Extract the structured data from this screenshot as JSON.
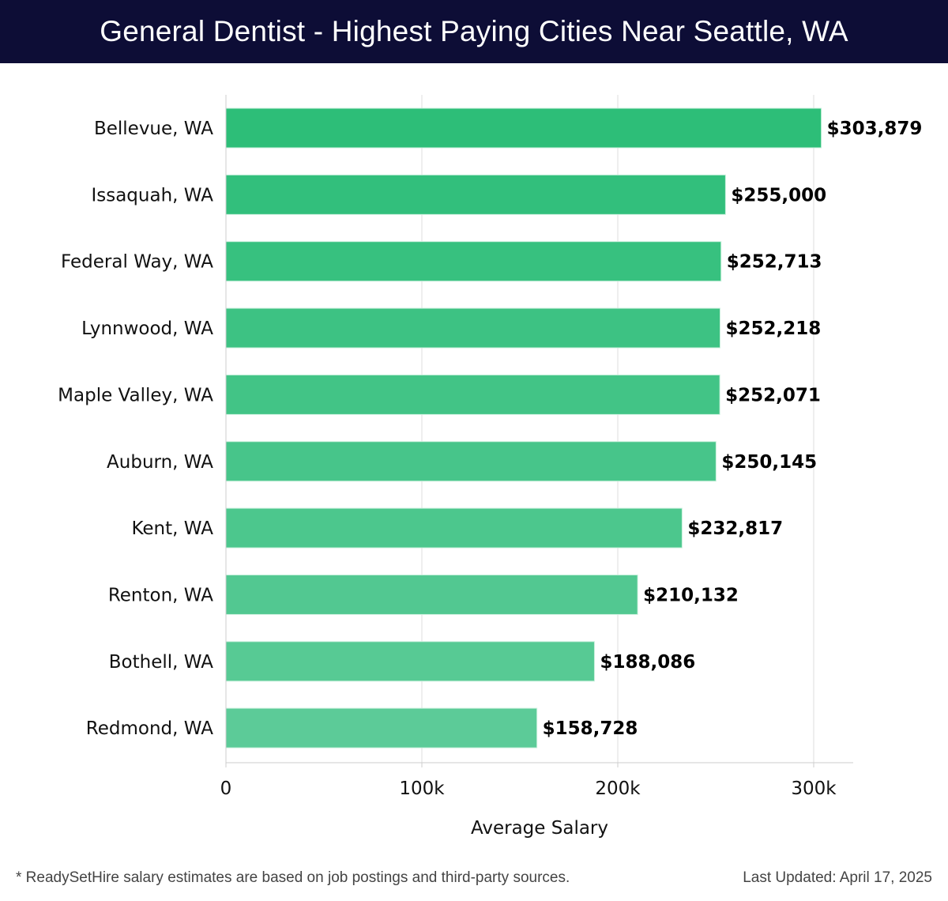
{
  "header": {
    "title": "General Dentist - Highest Paying Cities Near Seattle, WA"
  },
  "footer": {
    "note": "* ReadySetHire salary estimates are based on job postings and third-party sources.",
    "last_updated": "Last Updated: April 17, 2025"
  },
  "colors": {
    "header_bg": "#0d0d36",
    "bar_top": "#2dbe78",
    "bar_bottom": "#5ccb98",
    "grid": "#dddddd"
  },
  "chart_data": {
    "type": "bar",
    "orientation": "horizontal",
    "title": "General Dentist - Highest Paying Cities Near Seattle, WA",
    "xlabel": "Average Salary",
    "ylabel": "",
    "xlim": [
      0,
      320000
    ],
    "xticks": [
      0,
      100000,
      200000,
      300000
    ],
    "xtick_labels": [
      "0",
      "100k",
      "200k",
      "300k"
    ],
    "grid": "vertical",
    "categories": [
      "Bellevue, WA",
      "Issaquah, WA",
      "Federal Way, WA",
      "Lynnwood, WA",
      "Maple Valley, WA",
      "Auburn, WA",
      "Kent, WA",
      "Renton, WA",
      "Bothell, WA",
      "Redmond, WA"
    ],
    "values": [
      303879,
      255000,
      252713,
      252218,
      252071,
      250145,
      232817,
      210132,
      188086,
      158728
    ],
    "value_labels": [
      "$303,879",
      "$255,000",
      "$252,713",
      "$252,218",
      "$252,071",
      "$250,145",
      "$232,817",
      "$210,132",
      "$188,086",
      "$158,728"
    ]
  }
}
